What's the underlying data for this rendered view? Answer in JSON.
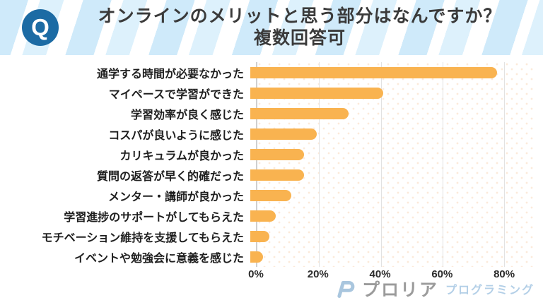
{
  "header": {
    "badge": "Q",
    "title_line1": "オンラインのメリットと思う部分はなんですか？",
    "title_line2": "複数回答可"
  },
  "chart_data": {
    "type": "bar",
    "orientation": "horizontal",
    "title": "オンラインのメリットと思う部分はなんですか？ 複数回答可",
    "categories": [
      "通学する時間が必要なかった",
      "マイペースで学習ができた",
      "学習効率が良く感じた",
      "コスパが良いように感じた",
      "カリキュラムが良かった",
      "質問の返答が早く的確だった",
      "メンター・講師が良かった",
      "学習進捗のサポートがしてもらえた",
      "モチベーション維持を支援してもらえた",
      "イベントや勉強会に意義を感じた"
    ],
    "values": [
      78,
      42,
      31,
      21,
      17,
      17,
      13,
      8,
      6,
      4
    ],
    "unit": "%",
    "xlim": [
      0,
      90
    ],
    "ticks": [
      {
        "label": "0%",
        "value": 0
      },
      {
        "label": "20%",
        "value": 20
      },
      {
        "label": "40%",
        "value": 40
      },
      {
        "label": "60%",
        "value": 60
      },
      {
        "label": "80%",
        "value": 80
      }
    ],
    "grid": true,
    "legend": false,
    "bar_color": "#F9B350"
  },
  "footer": {
    "logo_text": "プロリア",
    "logo_subtext": "プログラミング"
  },
  "colors": {
    "header_bg": "#cfeafa",
    "header_stripe": "#ffffff",
    "badge_bg": "#1c6ba4",
    "title_text": "#3a3a3a",
    "bar": "#F9B350",
    "gridline": "#e2e2e2",
    "axis_line": "#cfcfcf",
    "logo_gray": "#9b9b9b",
    "logo_blue": "#b3cfe7"
  }
}
